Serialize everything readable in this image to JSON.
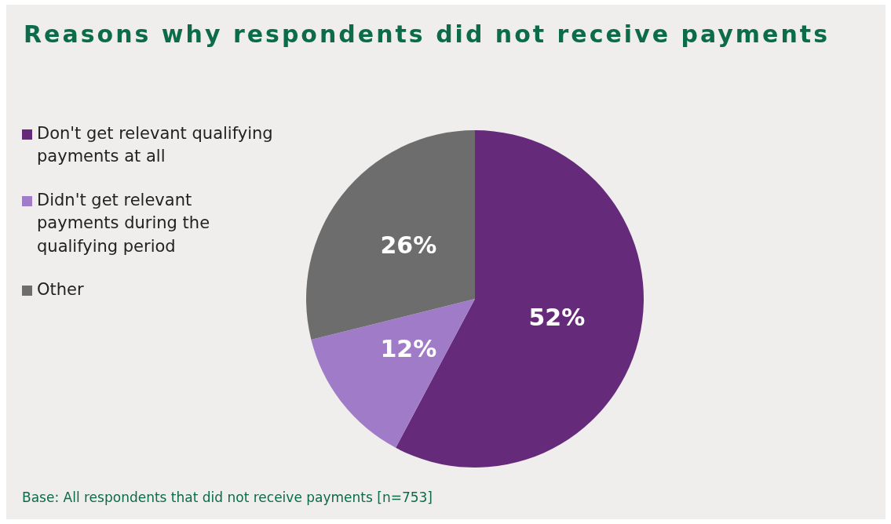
{
  "chart_data": {
    "type": "pie",
    "title": "Reasons why respondents did not receive payments",
    "categories": [
      "Don't get relevant qualifying payments at all",
      "Didn't get relevant payments during the qualifying period",
      "Other"
    ],
    "values": [
      52,
      12,
      26
    ],
    "colors": [
      "#662a7b",
      "#a07cc8",
      "#6d6d6d"
    ],
    "value_labels": [
      "52%",
      "12%",
      "26%"
    ],
    "legend": "left",
    "annotations": [
      "Base: All respondents that did not receive payments [n=753]"
    ]
  }
}
